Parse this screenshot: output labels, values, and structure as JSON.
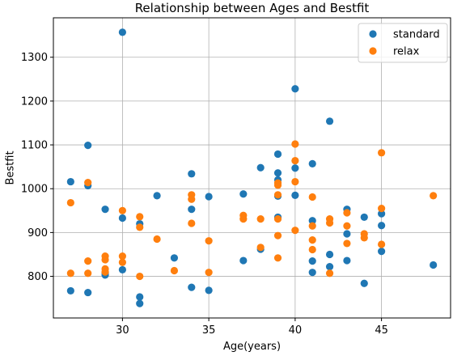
{
  "chart_data": {
    "type": "scatter",
    "title": "Relationship between Ages and Bestfit",
    "xlabel": "Age(years)",
    "ylabel": "Bestfit",
    "xlim": [
      26.0,
      49.0
    ],
    "ylim": [
      705,
      1390
    ],
    "xticks": [
      30,
      35,
      40,
      45
    ],
    "yticks": [
      800,
      900,
      1000,
      1100,
      1200,
      1300
    ],
    "grid": true,
    "legend_position": "top-right",
    "series": [
      {
        "name": "standard",
        "color": "#1f77b4",
        "points": [
          [
            27,
            1016
          ],
          [
            27,
            767
          ],
          [
            28,
            1099
          ],
          [
            28,
            1007
          ],
          [
            28,
            763
          ],
          [
            29,
            953
          ],
          [
            29,
            803
          ],
          [
            29,
            808
          ],
          [
            30,
            1357
          ],
          [
            30,
            933
          ],
          [
            30,
            815
          ],
          [
            31,
            920
          ],
          [
            31,
            753
          ],
          [
            31,
            738
          ],
          [
            32,
            984
          ],
          [
            33,
            842
          ],
          [
            34,
            1034
          ],
          [
            34,
            953
          ],
          [
            34,
            775
          ],
          [
            35,
            982
          ],
          [
            35,
            768
          ],
          [
            37,
            988
          ],
          [
            37,
            836
          ],
          [
            38,
            1048
          ],
          [
            38,
            862
          ],
          [
            39,
            1079
          ],
          [
            39,
            1036
          ],
          [
            39,
            1020
          ],
          [
            39,
            983
          ],
          [
            39,
            935
          ],
          [
            40,
            1228
          ],
          [
            40,
            1047
          ],
          [
            40,
            985
          ],
          [
            41,
            1057
          ],
          [
            41,
            927
          ],
          [
            41,
            835
          ],
          [
            41,
            809
          ],
          [
            42,
            1154
          ],
          [
            42,
            850
          ],
          [
            42,
            822
          ],
          [
            43,
            953
          ],
          [
            43,
            897
          ],
          [
            43,
            836
          ],
          [
            44,
            935
          ],
          [
            44,
            784
          ],
          [
            45,
            943
          ],
          [
            45,
            916
          ],
          [
            45,
            857
          ],
          [
            48,
            826
          ]
        ]
      },
      {
        "name": "relax",
        "color": "#ff7f0e",
        "points": [
          [
            27,
            968
          ],
          [
            27,
            807
          ],
          [
            28,
            1014
          ],
          [
            28,
            835
          ],
          [
            28,
            807
          ],
          [
            29,
            846
          ],
          [
            29,
            838
          ],
          [
            29,
            817
          ],
          [
            29,
            810
          ],
          [
            30,
            950
          ],
          [
            30,
            846
          ],
          [
            30,
            832
          ],
          [
            31,
            936
          ],
          [
            31,
            912
          ],
          [
            31,
            800
          ],
          [
            32,
            885
          ],
          [
            33,
            813
          ],
          [
            34,
            986
          ],
          [
            34,
            976
          ],
          [
            34,
            921
          ],
          [
            35,
            881
          ],
          [
            35,
            809
          ],
          [
            37,
            939
          ],
          [
            37,
            931
          ],
          [
            38,
            931
          ],
          [
            38,
            866
          ],
          [
            39,
            1013
          ],
          [
            39,
            1008
          ],
          [
            39,
            986
          ],
          [
            39,
            931
          ],
          [
            39,
            893
          ],
          [
            39,
            842
          ],
          [
            40,
            1102
          ],
          [
            40,
            1064
          ],
          [
            40,
            1016
          ],
          [
            40,
            905
          ],
          [
            41,
            981
          ],
          [
            41,
            915
          ],
          [
            41,
            883
          ],
          [
            41,
            861
          ],
          [
            42,
            931
          ],
          [
            42,
            922
          ],
          [
            42,
            807
          ],
          [
            43,
            945
          ],
          [
            43,
            915
          ],
          [
            43,
            875
          ],
          [
            44,
            897
          ],
          [
            44,
            888
          ],
          [
            45,
            1082
          ],
          [
            45,
            955
          ],
          [
            45,
            873
          ],
          [
            48,
            984
          ]
        ]
      }
    ]
  }
}
